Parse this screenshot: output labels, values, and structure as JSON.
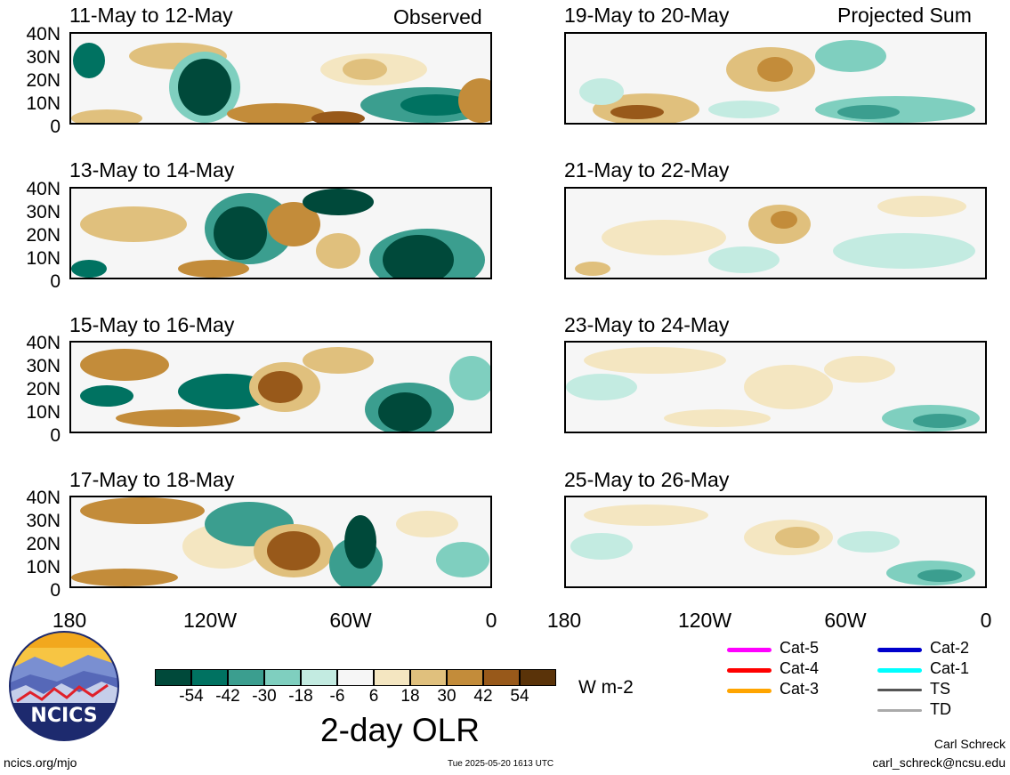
{
  "header": {
    "left_label": "Observed",
    "right_label": "Projected Sum"
  },
  "panels_left": [
    {
      "title": "11-May to 12-May"
    },
    {
      "title": "13-May to 14-May"
    },
    {
      "title": "15-May to 16-May"
    },
    {
      "title": "17-May to 18-May"
    }
  ],
  "panels_right": [
    {
      "title": "19-May to 20-May"
    },
    {
      "title": "21-May to 22-May"
    },
    {
      "title": "23-May to 24-May"
    },
    {
      "title": "25-May to 26-May"
    }
  ],
  "y_ticks": [
    "40N",
    "30N",
    "20N",
    "10N",
    "0"
  ],
  "x_ticks": [
    "180",
    "120W",
    "60W",
    "0"
  ],
  "colorbar": {
    "title": "2-day OLR",
    "units": "W m-2",
    "tick_labels": [
      "-54",
      "-42",
      "-30",
      "-18",
      "-6",
      "6",
      "18",
      "30",
      "42",
      "54"
    ],
    "colors": [
      "#00493a",
      "#007261",
      "#3b9e8f",
      "#7fcfbf",
      "#c3ebe1",
      "#f6f6f6",
      "#f4e6c1",
      "#e0c07d",
      "#c38c3a",
      "#98591a",
      "#5a3309"
    ]
  },
  "storm_legend": {
    "items_col1": [
      {
        "label": "Cat-5",
        "color": "#ff00ff"
      },
      {
        "label": "Cat-4",
        "color": "#ff0000"
      },
      {
        "label": "Cat-3",
        "color": "#ffa500"
      }
    ],
    "items_col2": [
      {
        "label": "Cat-2",
        "color": "#0000cc"
      },
      {
        "label": "Cat-1",
        "color": "#00ffff"
      },
      {
        "label": "TS",
        "color": "#555555"
      },
      {
        "label": "TD",
        "color": "#aaaaaa"
      }
    ]
  },
  "logo": {
    "text": "NCICS"
  },
  "footer": {
    "website": "ncics.org/mjo",
    "timestamp": "Tue 2025-05-20 1613 UTC",
    "author": "Carl Schreck",
    "email": "carl_schreck@ncsu.edu"
  }
}
